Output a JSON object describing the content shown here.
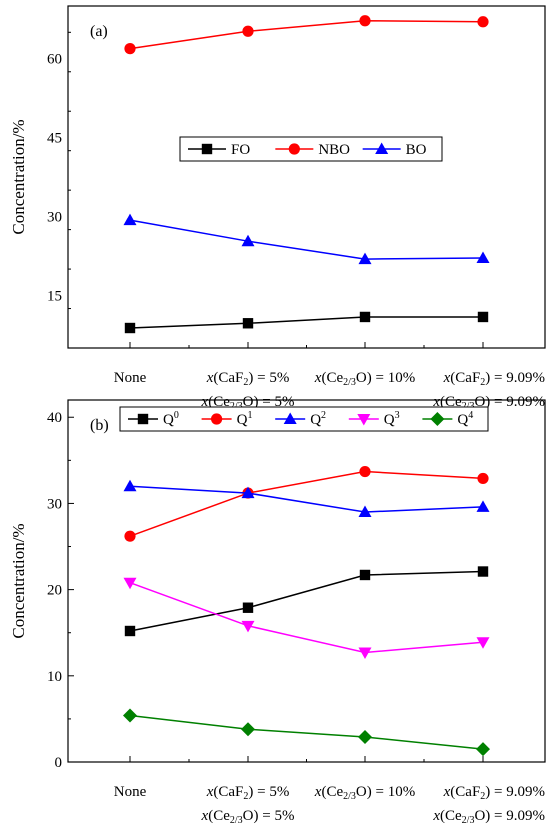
{
  "chart_data": [
    {
      "type": "line",
      "panel_label": "(a)",
      "ylabel": "Concentration/%",
      "ylim": [
        5,
        70
      ],
      "yticks": [
        15,
        30,
        45,
        60
      ],
      "categories": [
        {
          "lines": [
            [
              {
                "t": "None"
              }
            ]
          ]
        },
        {
          "lines": [
            [
              {
                "t": "x",
                "i": true
              },
              {
                "t": "(CaF"
              },
              {
                "t": "2",
                "sub": true
              },
              {
                "t": ") = 5%"
              }
            ],
            [
              {
                "t": "x",
                "i": true
              },
              {
                "t": "(Ce"
              },
              {
                "t": "2/3",
                "sub": true
              },
              {
                "t": "O) = 5%"
              }
            ]
          ]
        },
        {
          "lines": [
            [
              {
                "t": "x",
                "i": true
              },
              {
                "t": "(Ce"
              },
              {
                "t": "2/3",
                "sub": true
              },
              {
                "t": "O) = 10%"
              }
            ]
          ]
        },
        {
          "lines": [
            [
              {
                "t": "x",
                "i": true
              },
              {
                "t": "(CaF"
              },
              {
                "t": "2",
                "sub": true
              },
              {
                "t": ") = 9.09%"
              }
            ],
            [
              {
                "t": "x",
                "i": true
              },
              {
                "t": "(Ce"
              },
              {
                "t": "2/3",
                "sub": true
              },
              {
                "t": "O) = 9.09%"
              }
            ]
          ]
        }
      ],
      "legend": {
        "placement": "center"
      },
      "series": [
        {
          "name": "FO",
          "color": "#000000",
          "marker": "square",
          "values": [
            8.8,
            9.7,
            10.9,
            10.9
          ]
        },
        {
          "name": "NBO",
          "color": "#ff0000",
          "marker": "circle",
          "values": [
            61.9,
            65.2,
            67.2,
            67.0
          ]
        },
        {
          "name": "BO",
          "color": "#0000ff",
          "marker": "triangle-up",
          "values": [
            29.3,
            25.3,
            21.9,
            22.1
          ]
        }
      ]
    },
    {
      "type": "line",
      "panel_label": "(b)",
      "ylabel": "Concentration/%",
      "ylim": [
        0,
        42
      ],
      "yticks": [
        0,
        10,
        20,
        30,
        40
      ],
      "categories": [
        {
          "lines": [
            [
              {
                "t": "None"
              }
            ]
          ]
        },
        {
          "lines": [
            [
              {
                "t": "x",
                "i": true
              },
              {
                "t": "(CaF"
              },
              {
                "t": "2",
                "sub": true
              },
              {
                "t": ") = 5%"
              }
            ],
            [
              {
                "t": "x",
                "i": true
              },
              {
                "t": "(Ce"
              },
              {
                "t": "2/3",
                "sub": true
              },
              {
                "t": "O) = 5%"
              }
            ]
          ]
        },
        {
          "lines": [
            [
              {
                "t": "x",
                "i": true
              },
              {
                "t": "(Ce"
              },
              {
                "t": "2/3",
                "sub": true
              },
              {
                "t": "O) = 10%"
              }
            ]
          ]
        },
        {
          "lines": [
            [
              {
                "t": "x",
                "i": true
              },
              {
                "t": "(CaF"
              },
              {
                "t": "2",
                "sub": true
              },
              {
                "t": ") = 9.09%"
              }
            ],
            [
              {
                "t": "x",
                "i": true
              },
              {
                "t": "(Ce"
              },
              {
                "t": "2/3",
                "sub": true
              },
              {
                "t": "O) = 9.09%"
              }
            ]
          ]
        }
      ],
      "legend": {
        "placement": "top"
      },
      "series": [
        {
          "name": "Q",
          "sup": "0",
          "color": "#000000",
          "marker": "square",
          "values": [
            15.2,
            17.9,
            21.7,
            22.1
          ]
        },
        {
          "name": "Q",
          "sup": "1",
          "color": "#ff0000",
          "marker": "circle",
          "values": [
            26.2,
            31.2,
            33.7,
            32.9
          ]
        },
        {
          "name": "Q",
          "sup": "2",
          "color": "#0000ff",
          "marker": "triangle-up",
          "values": [
            32.0,
            31.2,
            29.0,
            29.6
          ]
        },
        {
          "name": "Q",
          "sup": "3",
          "color": "#ff00ff",
          "marker": "triangle-down",
          "values": [
            20.8,
            15.8,
            12.7,
            13.9
          ]
        },
        {
          "name": "Q",
          "sup": "4",
          "color": "#008000",
          "marker": "diamond",
          "values": [
            5.4,
            3.8,
            2.9,
            1.5
          ]
        }
      ]
    }
  ]
}
